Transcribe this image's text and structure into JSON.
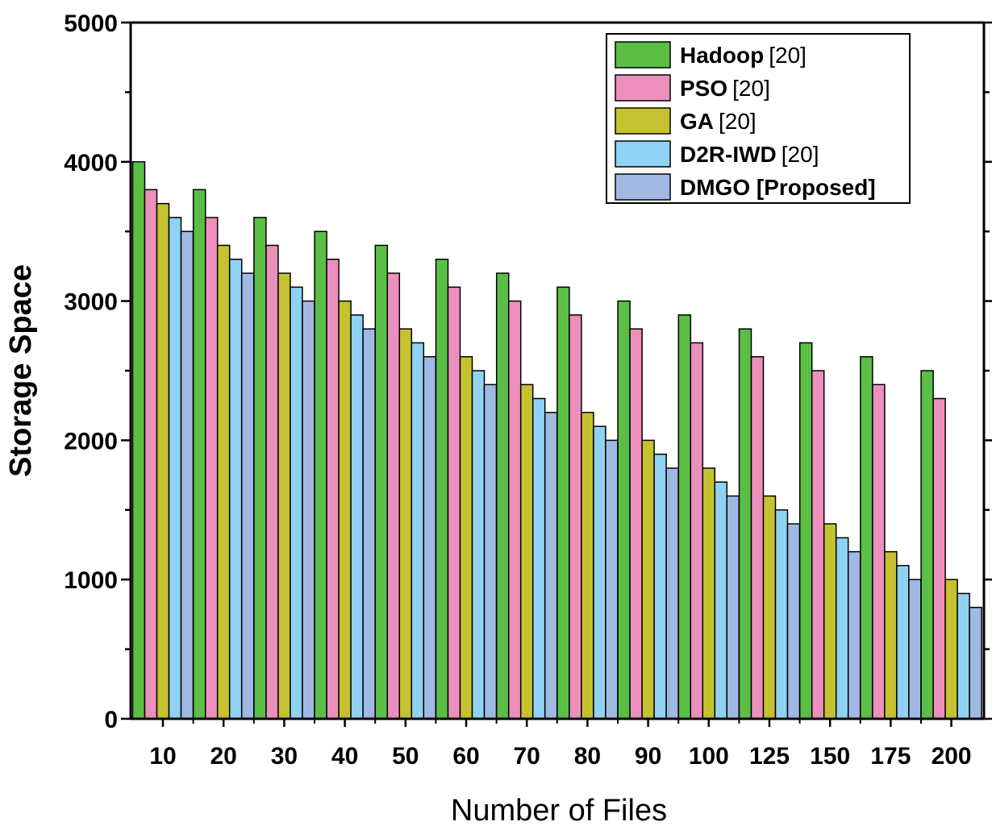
{
  "chart_data": {
    "type": "bar",
    "title": "",
    "xlabel": "Number of Files",
    "ylabel": "Storage Space",
    "ylim": [
      0,
      5000
    ],
    "yticks": [
      "0",
      "1000",
      "2000",
      "3000",
      "4000",
      "5000"
    ],
    "categories": [
      "10",
      "20",
      "30",
      "40",
      "50",
      "60",
      "70",
      "80",
      "90",
      "100",
      "125",
      "150",
      "175",
      "200"
    ],
    "legend_position": "top-right",
    "series": [
      {
        "name": "Hadoop",
        "ref": "[20]",
        "color": "#5bbf45",
        "values": [
          4000,
          3800,
          3600,
          3500,
          3400,
          3300,
          3200,
          3100,
          3000,
          2900,
          2800,
          2700,
          2600,
          2500
        ]
      },
      {
        "name": "PSO",
        "ref": "[20]",
        "color": "#ec8fbd",
        "values": [
          3800,
          3600,
          3400,
          3300,
          3200,
          3100,
          3000,
          2900,
          2800,
          2700,
          2600,
          2500,
          2400,
          2300
        ]
      },
      {
        "name": "GA",
        "ref": "[20]",
        "color": "#c5c230",
        "values": [
          3700,
          3400,
          3200,
          3000,
          2800,
          2600,
          2400,
          2200,
          2000,
          1800,
          1600,
          1400,
          1200,
          1000
        ]
      },
      {
        "name": "D2R-IWD",
        "ref": "[20]",
        "color": "#8fd2f3",
        "values": [
          3600,
          3300,
          3100,
          2900,
          2700,
          2500,
          2300,
          2100,
          1900,
          1700,
          1500,
          1300,
          1100,
          900
        ]
      },
      {
        "name": "DMGO [Proposed]",
        "ref": "",
        "color": "#9fb9e3",
        "values": [
          3500,
          3200,
          3000,
          2800,
          2600,
          2400,
          2200,
          2000,
          1800,
          1600,
          1400,
          1200,
          1000,
          800
        ]
      }
    ]
  }
}
